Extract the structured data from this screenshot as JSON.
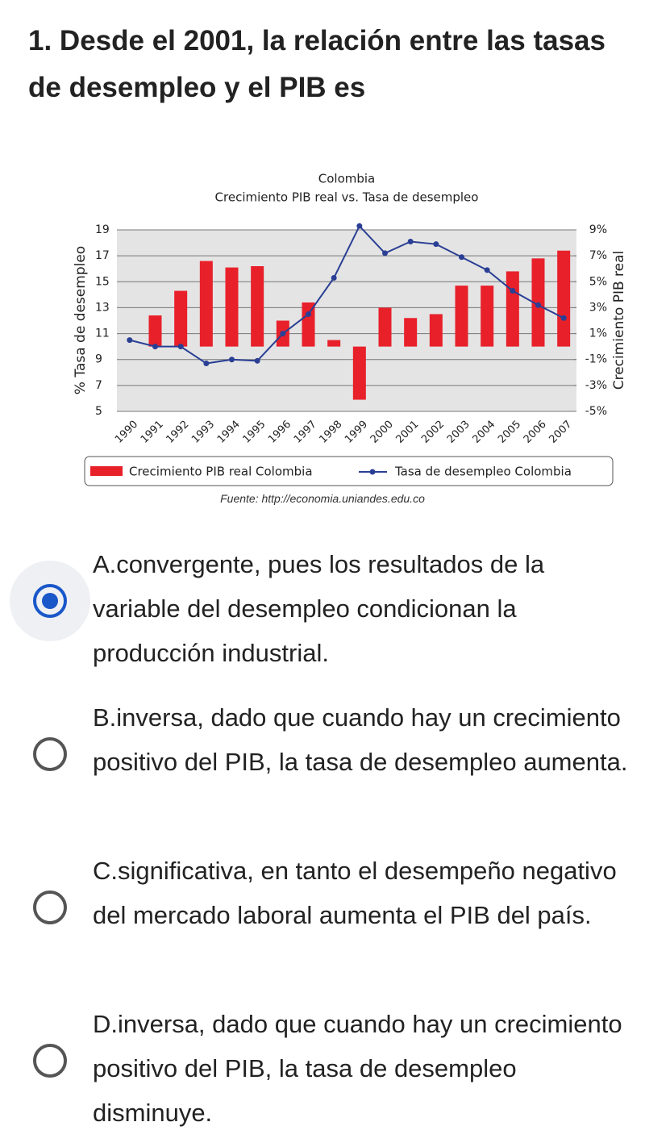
{
  "question": "1. Desde el 2001, la relación entre las tasas de desempleo y el PIB es",
  "chart_data": {
    "type": "bar",
    "title": "Colombia",
    "subtitle": "Crecimiento PIB real vs. Tasa de desempleo",
    "y_label": "% Tasa de desempleo",
    "y2_label": "Crecimiento PIB real",
    "categories": [
      "1990",
      "1991",
      "1992",
      "1993",
      "1994",
      "1995",
      "1996",
      "1997",
      "1998",
      "1999",
      "2000",
      "2001",
      "2002",
      "2003",
      "2004",
      "2005",
      "2006",
      "2007"
    ],
    "series": [
      {
        "name": "Crecimiento PIB real Colombia",
        "type": "bar",
        "axis": "y2",
        "color": "#e8202a",
        "values": [
          null,
          2.4,
          4.3,
          6.6,
          6.1,
          6.2,
          2.0,
          3.4,
          0.5,
          -4.1,
          3.0,
          2.2,
          2.5,
          4.7,
          4.7,
          5.8,
          6.8,
          7.4
        ]
      },
      {
        "name": "Tasa de desempleo Colombia",
        "type": "line",
        "color": "#2a3f94",
        "values": [
          10.5,
          10.0,
          10.0,
          8.7,
          9.0,
          8.9,
          11.0,
          12.5,
          15.3,
          19.3,
          17.2,
          18.1,
          17.9,
          16.9,
          15.9,
          14.3,
          13.2,
          12.2
        ]
      }
    ],
    "ylim": [
      5,
      19
    ],
    "yticks": [
      5,
      7,
      9,
      11,
      13,
      15,
      17,
      19
    ],
    "y2lim": [
      -5,
      9
    ],
    "y2ticks": [
      {
        "value": -5,
        "label": "-5%"
      },
      {
        "value": -3,
        "label": "-3%"
      },
      {
        "value": -1,
        "label": "-1%"
      },
      {
        "value": 1,
        "label": "1%"
      },
      {
        "value": 3,
        "label": "3%"
      },
      {
        "value": 5,
        "label": "5%"
      },
      {
        "value": 7,
        "label": "7%"
      },
      {
        "value": 9,
        "label": "9%"
      }
    ],
    "grid": true
  },
  "source": "Fuente: http://economia.uniandes.edu.co",
  "options": [
    "A.convergente, pues los resultados de la variable del desempleo condicionan la producción industrial.",
    "B.inversa, dado que cuando hay un crecimiento positivo del PIB, la tasa de desempleo aumenta.",
    "C.significativa, en tanto el desempeño negativo del mercado laboral aumenta el PIB del país.",
    "D.inversa, dado que cuando hay un crecimiento positivo del PIB, la tasa de desempleo disminuye."
  ],
  "selected_option": 0
}
